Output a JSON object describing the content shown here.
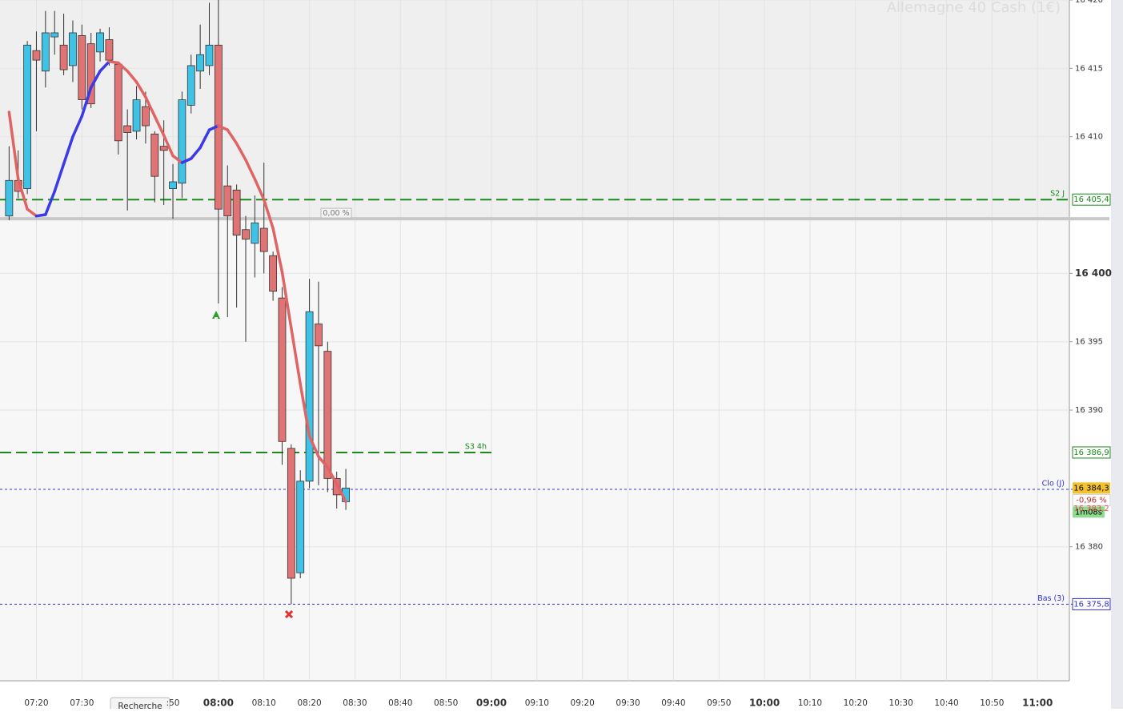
{
  "chart_data": {
    "type": "candlestick",
    "title": "Allemagne 40 Cash (1€)",
    "x": [
      "07:14",
      "07:16",
      "07:18",
      "07:20",
      "07:22",
      "07:24",
      "07:26",
      "07:28",
      "07:30",
      "07:32",
      "07:34",
      "07:36",
      "07:38",
      "07:40",
      "07:42",
      "07:44",
      "07:46",
      "07:48",
      "07:50",
      "07:52",
      "07:54",
      "07:56",
      "07:58",
      "08:00",
      "08:02",
      "08:04",
      "08:06",
      "08:08",
      "08:10",
      "08:12",
      "08:14",
      "08:16",
      "08:18",
      "08:20",
      "08:22",
      "08:24",
      "08:26",
      "08:28"
    ],
    "open": [
      16404.2,
      16406.8,
      16406.2,
      16416.3,
      16414.8,
      16417.3,
      16416.7,
      16415.2,
      16417.4,
      16416.8,
      16416.2,
      16417.1,
      16415.3,
      16410.8,
      16410.4,
      16412.2,
      16410.2,
      16409.3,
      16406.2,
      16406.6,
      16412.3,
      16414.8,
      16415.2,
      16416.7,
      16406.4,
      16406.1,
      16403.2,
      16402.2,
      16403.3,
      16401.3,
      16398.2,
      16387.2,
      16378.1,
      16384.8,
      16396.3,
      16394.3,
      16385.0,
      16383.3
    ],
    "high": [
      16409.3,
      16409.0,
      16417.0,
      16417.7,
      16419.2,
      16419.2,
      16419.0,
      16418.5,
      16418.2,
      16417.6,
      16417.9,
      16418.0,
      16415.5,
      16412.0,
      16413.7,
      16413.3,
      16410.4,
      16411.2,
      16408.0,
      16413.3,
      16416.0,
      16418.2,
      16419.8,
      16420.0,
      16407.9,
      16406.5,
      16404.2,
      16405.7,
      16408.1,
      16401.6,
      16399.0,
      16387.5,
      16385.6,
      16399.6,
      16399.4,
      16395.0,
      16385.5,
      16385.7
    ],
    "low": [
      16403.9,
      16405.5,
      16405.8,
      16410.4,
      16413.6,
      16416.0,
      16414.5,
      16414.0,
      16412.0,
      16412.1,
      16415.5,
      16415.2,
      16408.7,
      16404.6,
      16409.8,
      16409.5,
      16405.2,
      16405.0,
      16404.0,
      16405.5,
      16411.7,
      16413.5,
      16414.5,
      16397.8,
      16396.8,
      16397.5,
      16395.0,
      16399.7,
      16400.0,
      16398.0,
      16386.0,
      16375.8,
      16377.7,
      16384.3,
      16384.5,
      16384.0,
      16382.8,
      16382.7
    ],
    "close": [
      16406.8,
      16406.0,
      16416.7,
      16415.6,
      16417.6,
      16417.6,
      16414.9,
      16417.6,
      16412.7,
      16412.4,
      16417.6,
      16415.6,
      16409.7,
      16410.3,
      16412.7,
      16410.8,
      16407.1,
      16409.0,
      16406.7,
      16412.7,
      16415.2,
      16416.0,
      16416.7,
      16404.7,
      16404.2,
      16402.8,
      16402.5,
      16403.7,
      16401.6,
      16398.7,
      16387.7,
      16377.7,
      16384.8,
      16397.2,
      16394.7,
      16385.0,
      16383.8,
      16384.3
    ],
    "up_color": "#3ec3e6",
    "down_color": "#e07373",
    "moving_average": {
      "values": [
        16411.8,
        16406.9,
        16404.7,
        16404.2,
        16404.3,
        16406.0,
        16408.0,
        16410.0,
        16411.5,
        16413.6,
        16414.8,
        16415.5,
        16415.4,
        16414.8,
        16414.0,
        16412.9,
        16411.5,
        16410.1,
        16408.6,
        16408.1,
        16408.4,
        16409.2,
        16410.5,
        16410.8,
        16410.5,
        16409.5,
        16408.3,
        16406.9,
        16405.4,
        16403.3,
        16400.1,
        16396.0,
        16391.9,
        16388.1,
        16386.6,
        16385.8,
        16384.6,
        16383.3
      ],
      "rising_color": "#3a3ae6",
      "falling_color": "#e06464"
    },
    "xlim": [
      "07:12",
      "11:07"
    ],
    "xticks": [
      {
        "value": "07:20",
        "label": "07:20"
      },
      {
        "value": "07:30",
        "label": "07:30"
      },
      {
        "value": "07:50",
        "label": ":50"
      },
      {
        "value": "08:00",
        "label": "08:00"
      },
      {
        "value": "08:10",
        "label": "08:10"
      },
      {
        "value": "08:20",
        "label": "08:20"
      },
      {
        "value": "08:30",
        "label": "08:30"
      },
      {
        "value": "08:40",
        "label": "08:40"
      },
      {
        "value": "08:50",
        "label": "08:50"
      },
      {
        "value": "09:00",
        "label": "09:00"
      },
      {
        "value": "09:10",
        "label": "09:10"
      },
      {
        "value": "09:20",
        "label": "09:20"
      },
      {
        "value": "09:30",
        "label": "09:30"
      },
      {
        "value": "09:40",
        "label": "09:40"
      },
      {
        "value": "09:50",
        "label": "09:50"
      },
      {
        "value": "10:00",
        "label": "10:00"
      },
      {
        "value": "10:10",
        "label": "10:10"
      },
      {
        "value": "10:20",
        "label": "10:20"
      },
      {
        "value": "10:30",
        "label": "10:30"
      },
      {
        "value": "10:40",
        "label": "10:40"
      },
      {
        "value": "10:50",
        "label": "10:50"
      },
      {
        "value": "11:00",
        "label": "11:00"
      }
    ],
    "bold_xticks": [
      "08:00",
      "09:00",
      "10:00",
      "11:00"
    ],
    "ylim": [
      16370.2,
      16420.0
    ],
    "yticks": [
      {
        "value": 16420,
        "label": "16 420"
      },
      {
        "value": 16415,
        "label": "16 415"
      },
      {
        "value": 16410,
        "label": "16 410"
      },
      {
        "value": 16400,
        "label": "16 400"
      },
      {
        "value": 16395,
        "label": "16 395"
      },
      {
        "value": 16390,
        "label": "16 390"
      },
      {
        "value": 16380,
        "label": "16 380"
      }
    ],
    "bold_ytick": 16400,
    "grid": true,
    "levels": [
      {
        "name": "S2 J",
        "value": 16405.4,
        "label": "16 405,4",
        "color": "#1a8a1a",
        "style": "dashed"
      },
      {
        "name": "S3 4h",
        "value": 16386.9,
        "label": "16 386,9",
        "color": "#1a8a1a",
        "style": "dashed",
        "until": "09:00"
      },
      {
        "name": "Clo (J)",
        "value": 16384.2,
        "color": "#3030d0",
        "style": "dotted"
      },
      {
        "name": "Bas (3)",
        "value": 16375.8,
        "label": "16 375,8",
        "color": "#3030d0",
        "style": "dotted"
      }
    ],
    "reference": {
      "value": 16404.0,
      "label": "0,00 %"
    },
    "price_box": {
      "last": 16384.3,
      "last_label": "16 384,3",
      "change_label": "-0,96 %",
      "timer": "1m08s",
      "bid": 16383.2,
      "bid_label": "16 383,2"
    },
    "search_tab": "Recherche"
  }
}
